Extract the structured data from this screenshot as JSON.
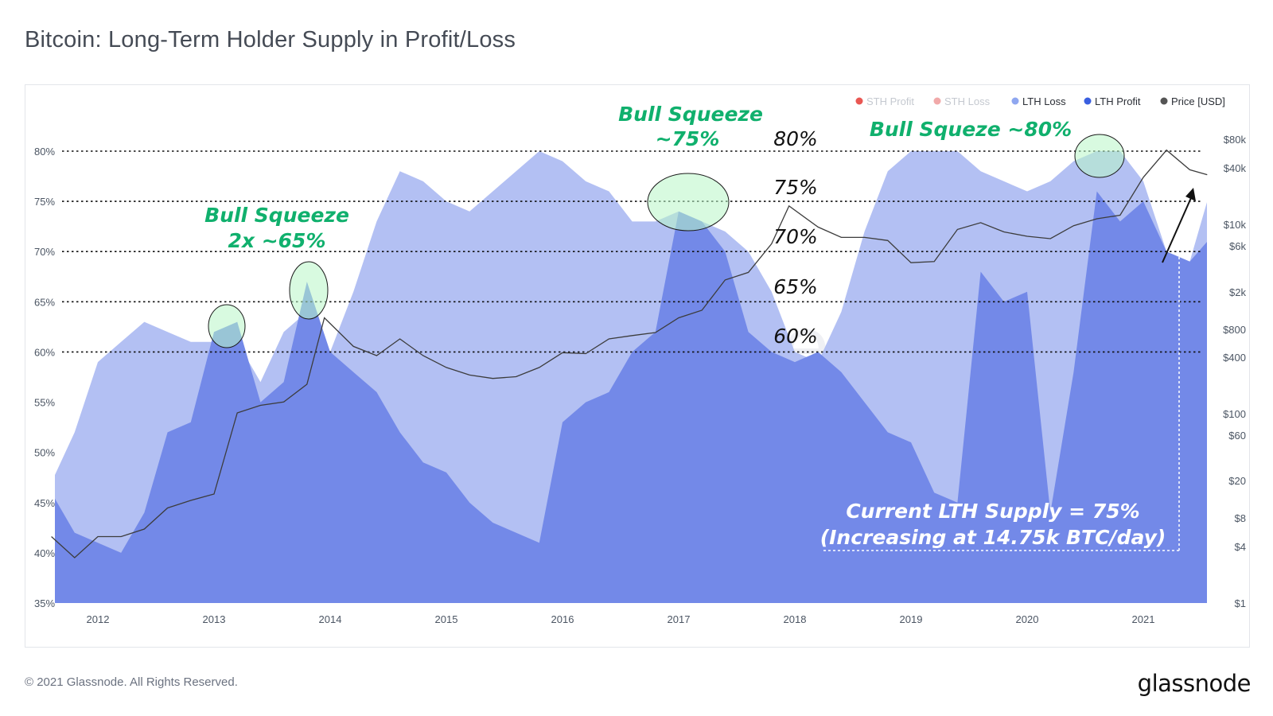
{
  "title": "Bitcoin: Long-Term Holder Supply in Profit/Loss",
  "footer": {
    "copyright": "© 2021 Glassnode. All Rights Reserved.",
    "brand": "glassnode"
  },
  "watermark": "glassnode",
  "legend": [
    {
      "label": "STH Profit",
      "color": "#e53935",
      "active": false
    },
    {
      "label": "STH Loss",
      "color": "#ef9a9a",
      "active": false
    },
    {
      "label": "LTH Loss",
      "color": "#8fa7f0",
      "active": true
    },
    {
      "label": "LTH Profit",
      "color": "#3a5fe0",
      "active": true
    },
    {
      "label": "Price [USD]",
      "color": "#555555",
      "active": true
    }
  ],
  "annotations": {
    "bull_2013_line1": "Bull Squeeze",
    "bull_2013_line2": "2x ~65%",
    "bull_2017_line1": "Bull Squeeze",
    "bull_2017_line2": "~75%",
    "bull_2021": "Bull Squeze ~80%",
    "current_line1": "Current LTH Supply = 75%",
    "current_line2": "(Increasing at 14.75k BTC/day)",
    "level_80": "80%",
    "level_75": "75%",
    "level_70": "70%",
    "level_65": "65%",
    "level_60": "60%"
  },
  "chart_data": {
    "type": "area",
    "x_ticks": [
      "2012",
      "2013",
      "2014",
      "2015",
      "2016",
      "2017",
      "2018",
      "2019",
      "2020",
      "2021"
    ],
    "y_left_ticks": [
      "35%",
      "40%",
      "45%",
      "50%",
      "55%",
      "60%",
      "65%",
      "70%",
      "75%",
      "80%"
    ],
    "y_right_ticks": [
      "$1",
      "$4",
      "$8",
      "$20",
      "$60",
      "$100",
      "$400",
      "$800",
      "$2k",
      "$6k",
      "$10k",
      "$40k",
      "$80k"
    ],
    "y_left_range": [
      35,
      80
    ],
    "y_right_scale": "log",
    "reference_lines": [
      80,
      75,
      70,
      65,
      60
    ],
    "series": [
      {
        "name": "LTH Loss",
        "color": "#b3c0f3",
        "x": [
          2011.6,
          2011.8,
          2012.0,
          2012.2,
          2012.4,
          2012.6,
          2012.8,
          2013.0,
          2013.2,
          2013.4,
          2013.6,
          2013.8,
          2014.0,
          2014.2,
          2014.4,
          2014.6,
          2014.8,
          2015.0,
          2015.2,
          2015.4,
          2015.6,
          2015.8,
          2016.0,
          2016.2,
          2016.4,
          2016.6,
          2016.8,
          2017.0,
          2017.2,
          2017.4,
          2017.6,
          2017.8,
          2018.0,
          2018.2,
          2018.4,
          2018.6,
          2018.8,
          2019.0,
          2019.2,
          2019.4,
          2019.6,
          2019.8,
          2020.0,
          2020.2,
          2020.4,
          2020.6,
          2020.8,
          2021.0,
          2021.2,
          2021.4,
          2021.55
        ],
        "y": [
          47,
          52,
          59,
          61,
          63,
          62,
          61,
          61,
          61,
          57,
          62,
          64,
          60,
          66,
          73,
          78,
          77,
          75,
          74,
          76,
          78,
          80,
          79,
          77,
          76,
          73,
          73,
          74,
          73,
          72,
          70,
          66,
          60,
          59,
          64,
          72,
          78,
          80,
          80,
          80,
          78,
          77,
          76,
          77,
          79,
          80,
          80,
          77,
          70,
          69,
          75
        ]
      },
      {
        "name": "LTH Profit",
        "color": "#7389e8",
        "x": [
          2011.6,
          2011.8,
          2012.0,
          2012.2,
          2012.4,
          2012.6,
          2012.8,
          2013.0,
          2013.2,
          2013.4,
          2013.6,
          2013.8,
          2014.0,
          2014.2,
          2014.4,
          2014.6,
          2014.8,
          2015.0,
          2015.2,
          2015.4,
          2015.6,
          2015.8,
          2016.0,
          2016.2,
          2016.4,
          2016.6,
          2016.8,
          2017.0,
          2017.2,
          2017.4,
          2017.6,
          2017.8,
          2018.0,
          2018.2,
          2018.4,
          2018.6,
          2018.8,
          2019.0,
          2019.2,
          2019.4,
          2019.6,
          2019.8,
          2020.0,
          2020.2,
          2020.4,
          2020.6,
          2020.8,
          2021.0,
          2021.2,
          2021.4,
          2021.55
        ],
        "y": [
          46,
          42,
          41,
          40,
          44,
          52,
          53,
          62,
          63,
          55,
          57,
          67,
          60,
          58,
          56,
          52,
          49,
          48,
          45,
          43,
          42,
          41,
          53,
          55,
          56,
          60,
          62,
          74,
          73,
          70,
          62,
          60,
          59,
          60,
          58,
          55,
          52,
          51,
          46,
          45,
          68,
          65,
          66,
          44,
          58,
          76,
          73,
          75,
          70,
          69,
          71
        ]
      },
      {
        "name": "Price [USD]",
        "color": "#3c3c3c",
        "axis": "right",
        "scale": "log",
        "x": [
          2011.6,
          2011.8,
          2012.0,
          2012.2,
          2012.4,
          2012.6,
          2012.8,
          2013.0,
          2013.2,
          2013.4,
          2013.6,
          2013.8,
          2013.95,
          2014.2,
          2014.4,
          2014.6,
          2014.8,
          2015.0,
          2015.2,
          2015.4,
          2015.6,
          2015.8,
          2016.0,
          2016.2,
          2016.4,
          2016.6,
          2016.8,
          2017.0,
          2017.2,
          2017.4,
          2017.6,
          2017.8,
          2017.95,
          2018.2,
          2018.4,
          2018.6,
          2018.8,
          2019.0,
          2019.2,
          2019.4,
          2019.6,
          2019.8,
          2020.0,
          2020.2,
          2020.4,
          2020.6,
          2020.8,
          2021.0,
          2021.2,
          2021.4,
          2021.55
        ],
        "y": [
          5,
          3,
          5,
          5,
          6,
          10,
          12,
          14,
          100,
          120,
          130,
          200,
          1000,
          500,
          400,
          600,
          400,
          300,
          250,
          230,
          240,
          300,
          430,
          420,
          600,
          650,
          700,
          1000,
          1200,
          2500,
          3000,
          6000,
          15000,
          9000,
          7000,
          7000,
          6500,
          3800,
          3900,
          8500,
          10000,
          8000,
          7200,
          6800,
          9300,
          11000,
          12000,
          30000,
          58000,
          36000,
          32000
        ]
      }
    ]
  }
}
